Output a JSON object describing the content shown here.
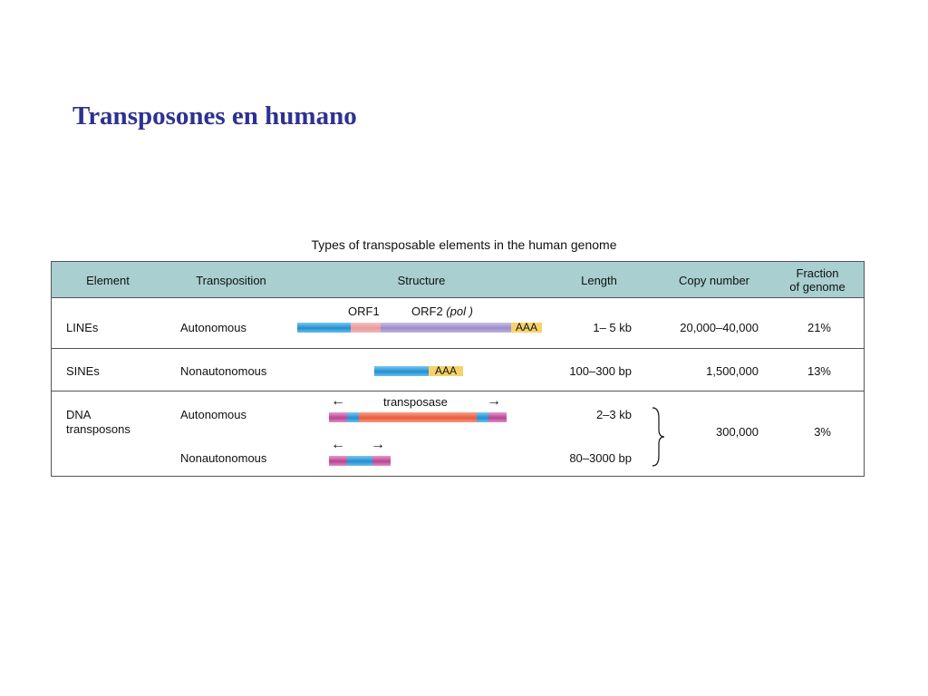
{
  "slide": {
    "title": "Transposones en humano"
  },
  "table": {
    "caption": "Types of transposable elements in the human genome",
    "headers": {
      "element": "Element",
      "transposition": "Transposition",
      "structure": "Structure",
      "length": "Length",
      "copy_number": "Copy number",
      "fraction_line1": "Fraction",
      "fraction_line2": "of genome"
    },
    "rows": {
      "lines": {
        "element": "LINEs",
        "transposition": "Autonomous",
        "orf1": "ORF1",
        "orf2": "ORF2",
        "orf2_italic": "(pol )",
        "polya": "AAA",
        "length": "1– 5 kb",
        "copy_number": "20,000–40,000",
        "fraction": "21%"
      },
      "sines": {
        "element": "SINEs",
        "transposition": "Nonautonomous",
        "polya": "AAA",
        "length": "100–300 bp",
        "copy_number": "1,500,000",
        "fraction": "13%"
      },
      "dna": {
        "element_line1": "DNA",
        "element_line2": "transposons",
        "auto_transposition": "Autonomous",
        "auto_label": "transposase",
        "auto_length": "2–3 kb",
        "nonauto_transposition": "Nonautonomous",
        "nonauto_length": "80–3000 bp",
        "copy_number": "300,000",
        "fraction": "3%"
      }
    }
  },
  "colors": {
    "title": "#2e3192",
    "header_bg": "#a9cfd0",
    "blue_segment": "#1f8fd3",
    "pink_segment": "#e89a9a",
    "purple_segment": "#9a8ccc",
    "polya_segment": "#f7d26a",
    "magenta_segment": "#b8448f",
    "red_segment": "#ea5a3e"
  }
}
